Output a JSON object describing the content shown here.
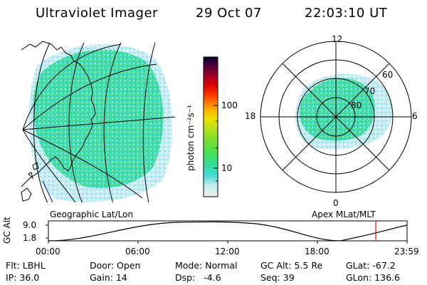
{
  "header": {
    "instrument": "Ultraviolet Imager",
    "date": "29 Oct 07",
    "time": "22:03:10 UT"
  },
  "colors": {
    "aurora_main": "#33e0a0",
    "aurora_light": "#c8ecf0",
    "aurora_bright": "#66e060",
    "orbit_marker": "#ff0000",
    "coast": "#000000"
  },
  "colorbar": {
    "label": "photon cm⁻²s⁻¹",
    "ticks": [
      "100",
      "10"
    ],
    "scale": "log"
  },
  "geo_panel": {
    "caption": "Geographic Lat/Lon"
  },
  "polar_panel": {
    "caption": "Apex MLat/MLT",
    "mlt_labels": {
      "top": "12",
      "bottom": "0",
      "left": "18",
      "right": "6"
    },
    "lat_labels": [
      "60",
      "70",
      "80"
    ]
  },
  "orbit_plot": {
    "ylabel": "GC Alt",
    "yticks": [
      "9.0",
      "1.8"
    ],
    "xticks": [
      "00:00",
      "06:00",
      "12:00",
      "18:00",
      "23:59"
    ],
    "current_time_marker": "22:03"
  },
  "info": {
    "flt": "Flt: LBHL",
    "ip": "IP: 36.0",
    "door": "Door: Open",
    "gain": "Gain: 14",
    "mode": "Mode: Normal",
    "dsp": "Dsp:   -4.6",
    "gcalt": "GC Alt: 5.5 Re",
    "seq": "Seq: 39",
    "glat": "GLat: -67.2",
    "glon": "GLon: 136.6"
  }
}
